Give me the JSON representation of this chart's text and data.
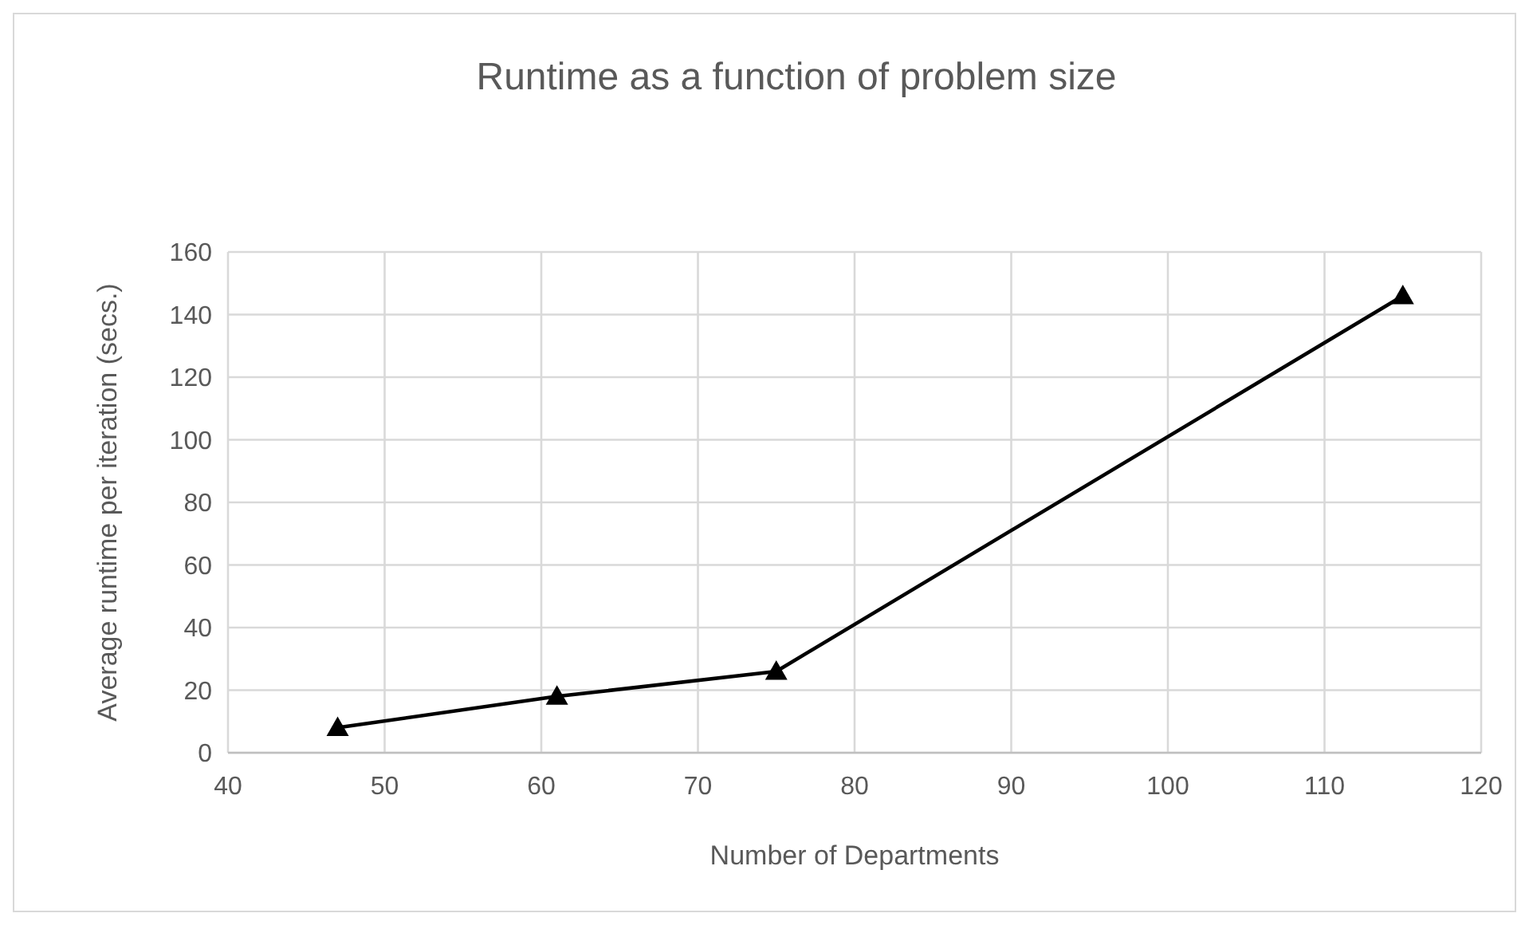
{
  "chart_data": {
    "type": "line",
    "title": "Runtime as a function of problem size",
    "xlabel": "Number of Departments",
    "ylabel": "Average runtime per iteration (secs.)",
    "x": [
      47,
      61,
      75,
      115
    ],
    "series": [
      {
        "color": "#000000",
        "values": [
          8,
          18,
          26,
          146
        ]
      }
    ],
    "xlim": [
      40,
      120
    ],
    "xticks": [
      40,
      50,
      60,
      70,
      80,
      90,
      100,
      110,
      120
    ],
    "ylim": [
      0,
      160
    ],
    "yticks": [
      0,
      20,
      40,
      60,
      80,
      100,
      120,
      140,
      160
    ],
    "grid": true,
    "marker": "triangle",
    "line_style": "solid"
  }
}
